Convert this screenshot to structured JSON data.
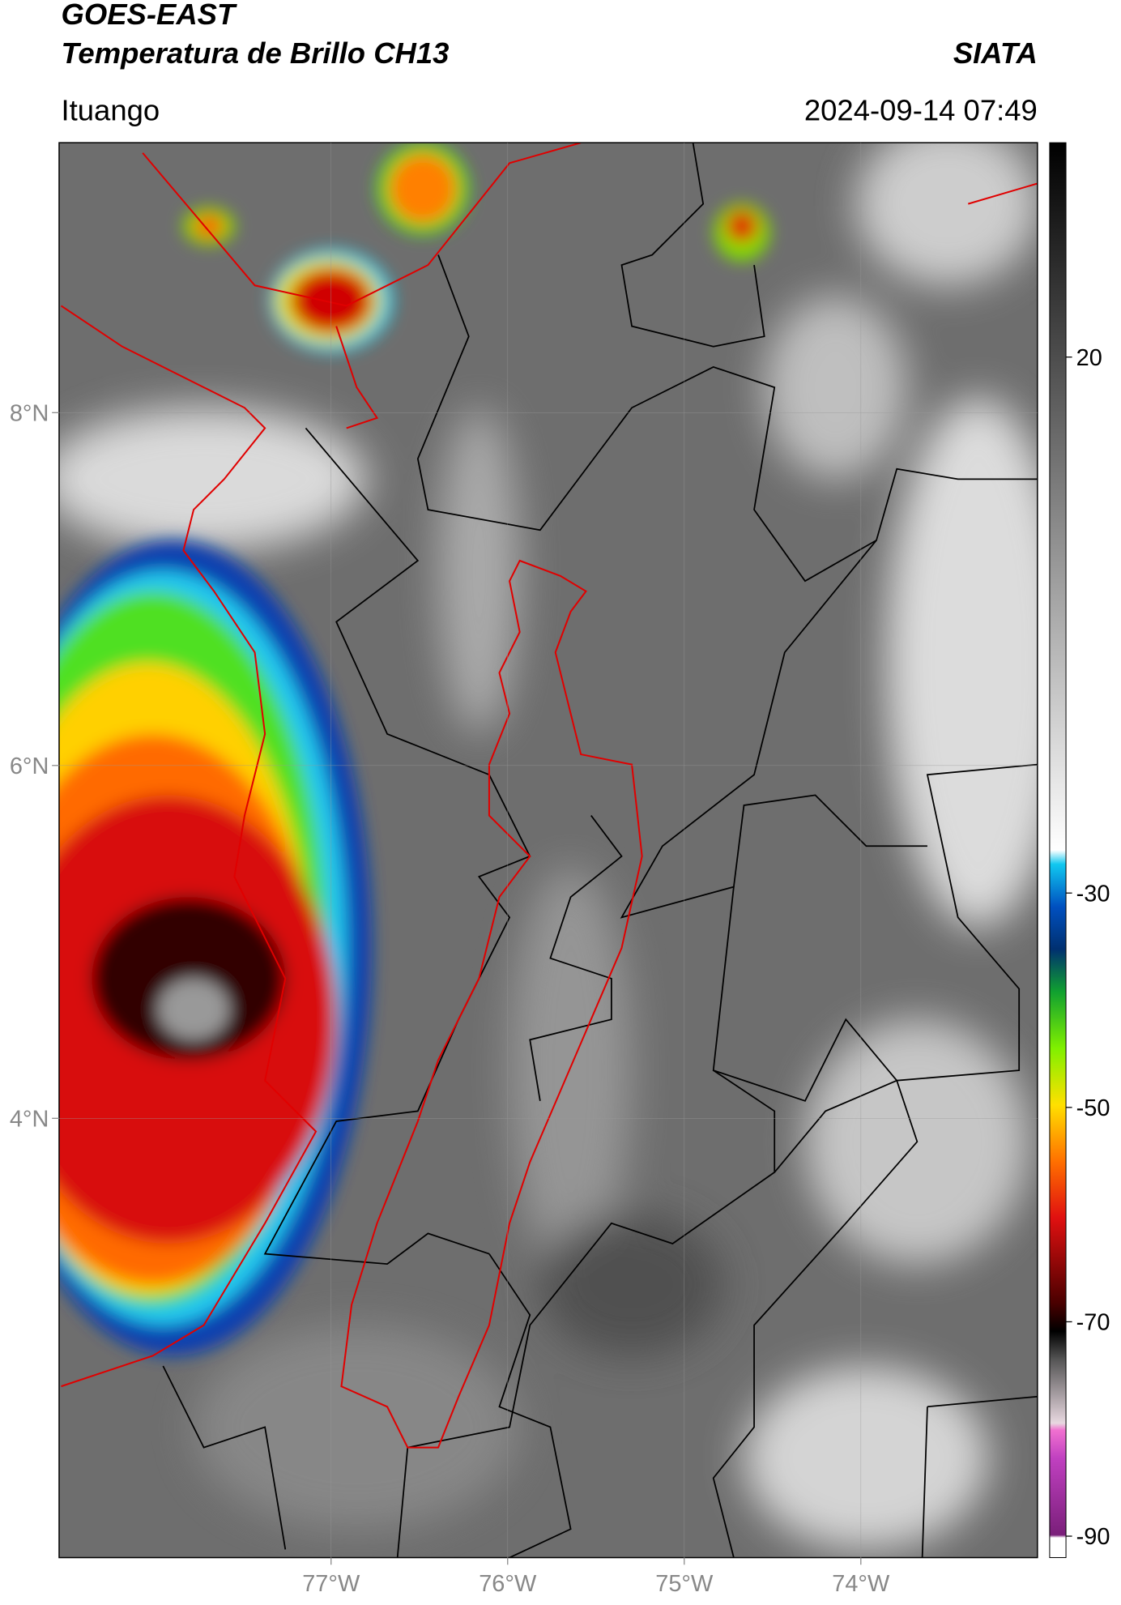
{
  "header": {
    "title": "GOES-EAST",
    "subtitle": "Temperatura de Brillo CH13",
    "agency": "SIATA",
    "location": "Ituango",
    "datetime": "2024-09-14 07:49"
  },
  "map": {
    "xlim": [
      -78.54,
      -73.0
    ],
    "ylim": [
      1.51,
      9.53
    ],
    "xticks": [
      {
        "value": -77,
        "label": "77°W"
      },
      {
        "value": -76,
        "label": "76°W"
      },
      {
        "value": -75,
        "label": "75°W"
      },
      {
        "value": -74,
        "label": "74°W"
      }
    ],
    "yticks": [
      {
        "value": 8,
        "label": "8°N"
      },
      {
        "value": 6,
        "label": "6°N"
      },
      {
        "value": 4,
        "label": "4°N"
      }
    ],
    "grid": true
  },
  "colorbar": {
    "lim": [
      -92,
      40
    ],
    "ticks": [
      20,
      -30,
      -50,
      -70,
      -90
    ]
  }
}
